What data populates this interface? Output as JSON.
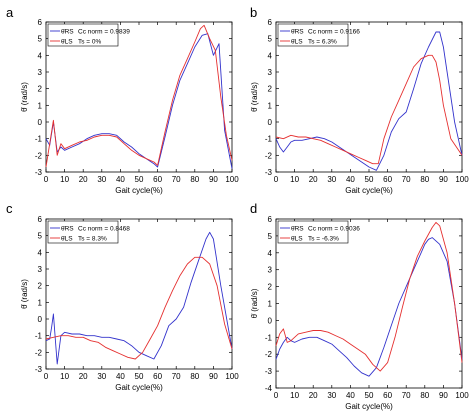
{
  "chart_data": [
    {
      "panel": "a",
      "type": "line",
      "xlabel": "Gait cycle(%)",
      "ylabel": "θ̇ (rad/s)",
      "xlim": [
        0,
        100
      ],
      "ylim": [
        -3,
        6
      ],
      "xticks": [
        0,
        10,
        20,
        30,
        40,
        50,
        60,
        70,
        80,
        90,
        100
      ],
      "yticks": [
        -3,
        -2,
        -1,
        0,
        1,
        2,
        3,
        4,
        5,
        6
      ],
      "legend": {
        "position": "top-left",
        "entries": [
          "θ̇RS",
          "θ̇LS"
        ],
        "annotations": [
          "Cc norm = 0.9839",
          "Ts = 0%"
        ]
      },
      "series": [
        {
          "name": "θ̇RS",
          "color": "#3333cc",
          "x": [
            0,
            2,
            4,
            6,
            8,
            10,
            14,
            18,
            22,
            26,
            30,
            34,
            38,
            42,
            46,
            50,
            54,
            58,
            60,
            64,
            68,
            72,
            76,
            80,
            84,
            87,
            90,
            93,
            96,
            100
          ],
          "y": [
            -1.0,
            -1.4,
            0.0,
            -1.8,
            -1.5,
            -1.7,
            -1.5,
            -1.3,
            -1.0,
            -0.8,
            -0.7,
            -0.7,
            -0.8,
            -1.2,
            -1.5,
            -1.9,
            -2.2,
            -2.5,
            -2.7,
            -0.9,
            1.0,
            2.5,
            3.5,
            4.5,
            5.2,
            5.3,
            4.0,
            4.7,
            -0.5,
            -2.8
          ]
        },
        {
          "name": "θ̇LS",
          "color": "#e53030",
          "x": [
            0,
            2,
            4,
            6,
            8,
            10,
            14,
            18,
            22,
            26,
            30,
            34,
            38,
            42,
            46,
            50,
            54,
            58,
            60,
            64,
            68,
            72,
            76,
            80,
            83,
            85,
            88,
            91,
            94,
            97,
            100
          ],
          "y": [
            -2.7,
            -1.3,
            0.1,
            -2.0,
            -1.3,
            -1.6,
            -1.4,
            -1.2,
            -1.1,
            -0.9,
            -0.8,
            -0.8,
            -0.9,
            -1.3,
            -1.7,
            -2.0,
            -2.2,
            -2.4,
            -2.6,
            -0.6,
            1.3,
            2.8,
            3.8,
            4.8,
            5.6,
            5.8,
            5.0,
            4.3,
            1.5,
            -0.8,
            -2.3
          ]
        }
      ]
    },
    {
      "panel": "b",
      "type": "line",
      "xlabel": "Gait cycle(%)",
      "ylabel": "θ̇ (rad/s)",
      "xlim": [
        0,
        100
      ],
      "ylim": [
        -3,
        6
      ],
      "xticks": [
        0,
        10,
        20,
        30,
        40,
        50,
        60,
        70,
        80,
        90,
        100
      ],
      "yticks": [
        -3,
        -2,
        -1,
        0,
        1,
        2,
        3,
        4,
        5,
        6
      ],
      "legend": {
        "position": "top-left",
        "entries": [
          "θ̇RS",
          "θ̇LS"
        ],
        "annotations": [
          "Cc norm = 0.9166",
          "Ts = 6.3%"
        ]
      },
      "series": [
        {
          "name": "θ̇RS",
          "color": "#3333cc",
          "x": [
            0,
            2,
            4,
            6,
            8,
            10,
            14,
            18,
            22,
            26,
            30,
            34,
            38,
            42,
            46,
            50,
            54,
            58,
            62,
            66,
            70,
            74,
            78,
            82,
            86,
            88,
            90,
            92,
            96,
            100
          ],
          "y": [
            -1.0,
            -1.5,
            -1.8,
            -1.5,
            -1.2,
            -1.1,
            -1.1,
            -1.0,
            -0.9,
            -1.0,
            -1.2,
            -1.5,
            -1.8,
            -2.1,
            -2.4,
            -2.7,
            -2.9,
            -2.0,
            -0.6,
            0.2,
            0.6,
            2.0,
            3.5,
            4.5,
            5.4,
            5.4,
            4.5,
            3.0,
            0.0,
            -2.0
          ]
        },
        {
          "name": "θ̇LS",
          "color": "#e53030",
          "x": [
            0,
            4,
            8,
            12,
            16,
            20,
            24,
            28,
            32,
            36,
            40,
            44,
            48,
            52,
            55,
            58,
            62,
            66,
            70,
            74,
            78,
            82,
            84,
            86,
            88,
            90,
            94,
            100
          ],
          "y": [
            -0.9,
            -1.0,
            -0.8,
            -0.9,
            -0.9,
            -1.0,
            -1.1,
            -1.3,
            -1.5,
            -1.7,
            -1.9,
            -2.1,
            -2.3,
            -2.5,
            -2.5,
            -1.0,
            0.3,
            1.3,
            2.3,
            3.3,
            3.8,
            4.0,
            4.0,
            3.6,
            2.5,
            1.0,
            -1.0,
            -2.0
          ]
        }
      ]
    },
    {
      "panel": "c",
      "type": "line",
      "xlabel": "Gait cycle(%)",
      "ylabel": "θ̇ (rad/s)",
      "xlim": [
        0,
        100
      ],
      "ylim": [
        -3,
        6
      ],
      "xticks": [
        0,
        10,
        20,
        30,
        40,
        50,
        60,
        70,
        80,
        90,
        100
      ],
      "yticks": [
        -3,
        -2,
        -1,
        0,
        1,
        2,
        3,
        4,
        5,
        6
      ],
      "legend": {
        "position": "top-left",
        "entries": [
          "θ̇RS",
          "θ̇LS"
        ],
        "annotations": [
          "Cc norm = 0.8468",
          "Ts = 8.3%"
        ]
      },
      "series": [
        {
          "name": "θ̇RS",
          "color": "#3333cc",
          "x": [
            0,
            2,
            3,
            4,
            6,
            8,
            10,
            14,
            18,
            22,
            26,
            30,
            34,
            38,
            42,
            46,
            50,
            54,
            58,
            62,
            66,
            70,
            74,
            78,
            82,
            86,
            88,
            90,
            94,
            100
          ],
          "y": [
            -1.3,
            -1.2,
            -0.5,
            0.3,
            -2.7,
            -1.0,
            -0.8,
            -0.9,
            -0.9,
            -1.0,
            -1.0,
            -1.1,
            -1.1,
            -1.2,
            -1.3,
            -1.6,
            -2.0,
            -2.2,
            -2.4,
            -1.6,
            -0.4,
            0.0,
            0.7,
            2.2,
            3.5,
            4.8,
            5.2,
            4.8,
            2.0,
            -1.8
          ]
        },
        {
          "name": "θ̇LS",
          "color": "#e53030",
          "x": [
            0,
            4,
            8,
            12,
            16,
            20,
            24,
            28,
            32,
            36,
            40,
            44,
            48,
            52,
            56,
            60,
            64,
            68,
            72,
            76,
            80,
            84,
            88,
            92,
            96,
            100
          ],
          "y": [
            -1.2,
            -1.1,
            -1.0,
            -1.0,
            -1.1,
            -1.1,
            -1.3,
            -1.4,
            -1.7,
            -1.9,
            -2.1,
            -2.3,
            -2.4,
            -2.0,
            -1.2,
            -0.4,
            0.7,
            1.7,
            2.6,
            3.3,
            3.7,
            3.7,
            3.3,
            2.0,
            -0.3,
            -1.8
          ]
        }
      ]
    },
    {
      "panel": "d",
      "type": "line",
      "xlabel": "Gait cycle(%)",
      "ylabel": "θ̇ (rad/s)",
      "xlim": [
        0,
        100
      ],
      "ylim": [
        -4,
        6
      ],
      "xticks": [
        0,
        10,
        20,
        30,
        40,
        50,
        60,
        70,
        80,
        90,
        100
      ],
      "yticks": [
        -4,
        -3,
        -2,
        -1,
        0,
        1,
        2,
        3,
        4,
        5,
        6
      ],
      "legend": {
        "position": "top-left",
        "entries": [
          "θ̇RS",
          "θ̇LS"
        ],
        "annotations": [
          "Cc norm = 0.9036",
          "Ts = -6.3%"
        ]
      },
      "series": [
        {
          "name": "θ̇RS",
          "color": "#3333cc",
          "x": [
            0,
            2,
            4,
            6,
            8,
            10,
            14,
            18,
            22,
            26,
            30,
            34,
            38,
            42,
            46,
            50,
            54,
            58,
            62,
            66,
            70,
            74,
            78,
            80,
            82,
            84,
            88,
            92,
            96,
            100
          ],
          "y": [
            -2.3,
            -1.7,
            -1.3,
            -1.0,
            -1.2,
            -1.3,
            -1.1,
            -1.0,
            -1.0,
            -1.2,
            -1.4,
            -1.8,
            -2.2,
            -2.7,
            -3.1,
            -3.3,
            -2.8,
            -1.6,
            -0.3,
            1.0,
            2.0,
            3.0,
            4.0,
            4.5,
            4.8,
            4.9,
            4.5,
            3.5,
            1.0,
            -2.3
          ]
        },
        {
          "name": "θ̇LS",
          "color": "#e53030",
          "x": [
            0,
            2,
            4,
            6,
            8,
            12,
            16,
            20,
            24,
            28,
            32,
            36,
            40,
            44,
            48,
            52,
            56,
            60,
            64,
            68,
            72,
            76,
            80,
            84,
            86,
            88,
            92,
            96,
            100
          ],
          "y": [
            -1.5,
            -0.8,
            -0.5,
            -1.3,
            -1.2,
            -0.8,
            -0.7,
            -0.6,
            -0.6,
            -0.7,
            -0.9,
            -1.1,
            -1.4,
            -1.7,
            -2.0,
            -2.6,
            -3.0,
            -2.5,
            -1.0,
            0.8,
            2.5,
            3.8,
            4.7,
            5.5,
            5.8,
            5.6,
            4.0,
            1.0,
            -2.5
          ]
        }
      ]
    }
  ]
}
